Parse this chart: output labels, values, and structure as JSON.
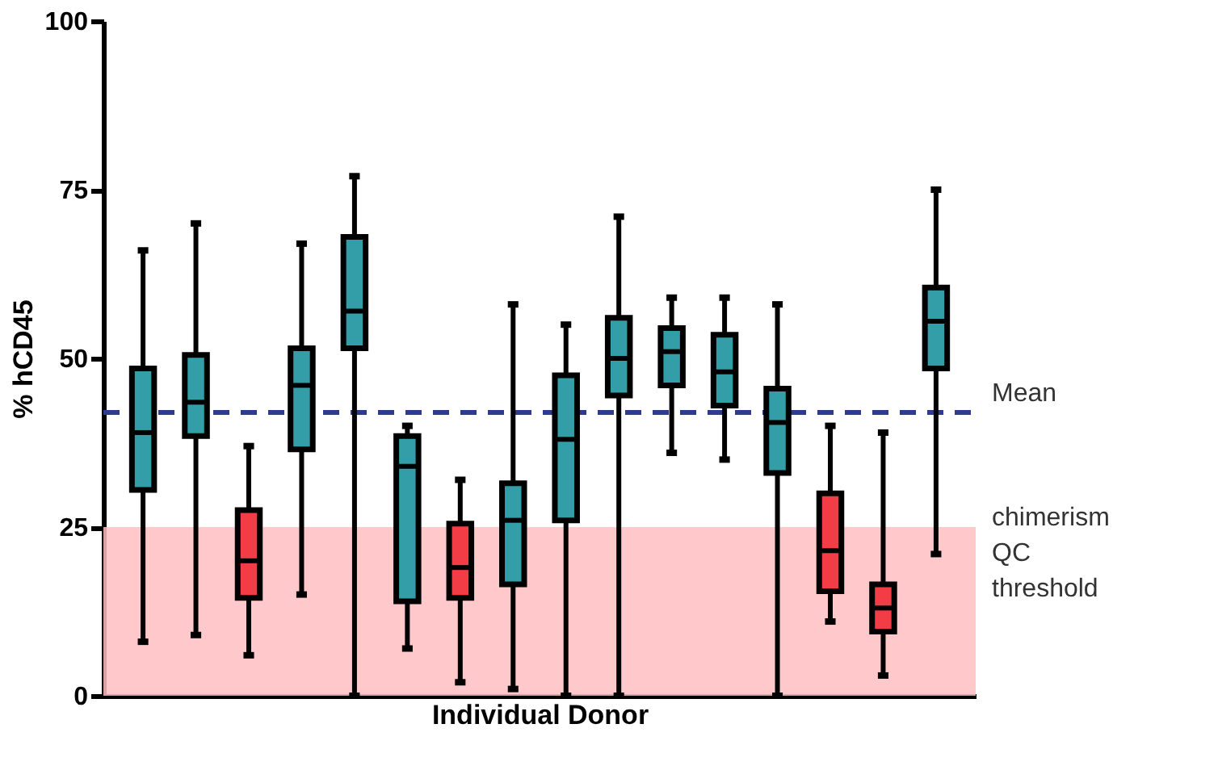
{
  "chart_data": {
    "type": "box",
    "xlabel": "Individual Donor",
    "ylabel": "% hCD45",
    "categories": [
      null,
      null,
      null,
      null,
      null,
      null,
      null,
      null,
      null,
      null,
      null,
      null,
      null,
      null,
      null,
      null
    ],
    "boxes": [
      {
        "low": 8,
        "q1": 30.5,
        "median": 39,
        "q3": 48.5,
        "high": 66
      },
      {
        "low": 9,
        "q1": 38.5,
        "median": 43.5,
        "q3": 50.5,
        "high": 70
      },
      {
        "low": 6,
        "q1": 14.5,
        "median": 20,
        "q3": 27.5,
        "high": 37
      },
      {
        "low": 15,
        "q1": 36.5,
        "median": 46,
        "q3": 51.5,
        "high": 67
      },
      {
        "low": 0,
        "q1": 51.5,
        "median": 57,
        "q3": 68,
        "high": 77
      },
      {
        "low": 7,
        "q1": 14,
        "median": 34,
        "q3": 38.5,
        "high": 40
      },
      {
        "low": 2,
        "q1": 14.5,
        "median": 19,
        "q3": 25.5,
        "high": 32
      },
      {
        "low": 1,
        "q1": 16.5,
        "median": 26,
        "q3": 31.5,
        "high": 58
      },
      {
        "low": 0,
        "q1": 26,
        "median": 38,
        "q3": 47.5,
        "high": 55
      },
      {
        "low": 0,
        "q1": 44.5,
        "median": 50,
        "q3": 56,
        "high": 71
      },
      {
        "low": 36,
        "q1": 46,
        "median": 51,
        "q3": 54.5,
        "high": 59
      },
      {
        "low": 35,
        "q1": 43,
        "median": 48,
        "q3": 53.5,
        "high": 59
      },
      {
        "low": 0,
        "q1": 33,
        "median": 40.5,
        "q3": 45.5,
        "high": 58
      },
      {
        "low": 11,
        "q1": 15.5,
        "median": 21.5,
        "q3": 30,
        "high": 40
      },
      {
        "low": 3,
        "q1": 9.5,
        "median": 13,
        "q3": 16.5,
        "high": 39
      },
      {
        "low": 21,
        "q1": 48.5,
        "median": 55.5,
        "q3": 60.5,
        "high": 75
      }
    ],
    "colors": [
      "#339ea8",
      "#339ea8",
      "#f23d47",
      "#339ea8",
      "#339ea8",
      "#339ea8",
      "#f23d47",
      "#339ea8",
      "#339ea8",
      "#339ea8",
      "#339ea8",
      "#339ea8",
      "#339ea8",
      "#f23d47",
      "#f23d47",
      "#339ea8"
    ],
    "ylim": [
      0,
      100
    ],
    "yticks": [
      0,
      25,
      50,
      75,
      100
    ],
    "ref_lines": [
      {
        "axis": "y",
        "value": 42,
        "label": "Mean",
        "color": "#2e3b8f",
        "line_style": "dashed"
      }
    ],
    "bands": [
      {
        "axis": "y",
        "from": 0,
        "to": 25,
        "label": "chimerism QC threshold",
        "color": "#ffbfc2"
      }
    ],
    "tick_labels": "y"
  }
}
